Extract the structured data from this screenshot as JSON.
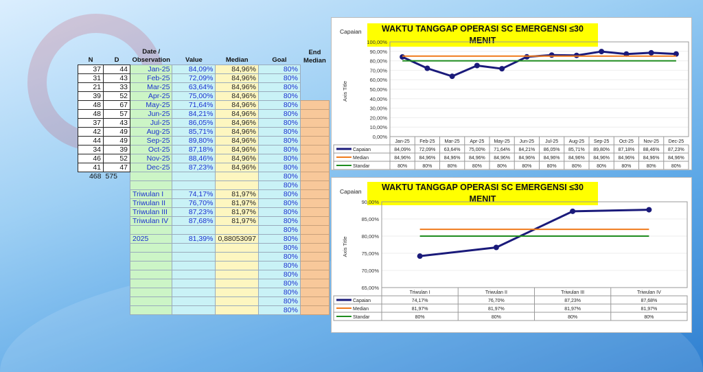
{
  "table": {
    "headers": {
      "n": "N",
      "d": "D",
      "date": "Date /",
      "date2": "Observation",
      "value": "Value",
      "median": "Median",
      "goal": "Goal",
      "end": "End",
      "end2": "Median"
    },
    "monthly": [
      {
        "n": "37",
        "d": "44",
        "date": "Jan-25",
        "value": "84,09%",
        "median": "84,96%",
        "goal": "80%"
      },
      {
        "n": "31",
        "d": "43",
        "date": "Feb-25",
        "value": "72,09%",
        "median": "84,96%",
        "goal": "80%"
      },
      {
        "n": "21",
        "d": "33",
        "date": "Mar-25",
        "value": "63,64%",
        "median": "84,96%",
        "goal": "80%"
      },
      {
        "n": "39",
        "d": "52",
        "date": "Apr-25",
        "value": "75,00%",
        "median": "84,96%",
        "goal": "80%"
      },
      {
        "n": "48",
        "d": "67",
        "date": "May-25",
        "value": "71,64%",
        "median": "84,96%",
        "goal": "80%"
      },
      {
        "n": "48",
        "d": "57",
        "date": "Jun-25",
        "value": "84,21%",
        "median": "84,96%",
        "goal": "80%"
      },
      {
        "n": "37",
        "d": "43",
        "date": "Jul-25",
        "value": "86,05%",
        "median": "84,96%",
        "goal": "80%"
      },
      {
        "n": "42",
        "d": "49",
        "date": "Aug-25",
        "value": "85,71%",
        "median": "84,96%",
        "goal": "80%"
      },
      {
        "n": "44",
        "d": "49",
        "date": "Sep-25",
        "value": "89,80%",
        "median": "84,96%",
        "goal": "80%"
      },
      {
        "n": "34",
        "d": "39",
        "date": "Oct-25",
        "value": "87,18%",
        "median": "84,96%",
        "goal": "80%"
      },
      {
        "n": "46",
        "d": "52",
        "date": "Nov-25",
        "value": "88,46%",
        "median": "84,96%",
        "goal": "80%"
      },
      {
        "n": "41",
        "d": "47",
        "date": "Dec-25",
        "value": "87,23%",
        "median": "84,96%",
        "goal": "80%"
      }
    ],
    "totals": {
      "n": "468",
      "d": "575",
      "goal": "80%"
    },
    "quarterly": [
      {
        "date": "Triwulan I",
        "value": "74,17%",
        "median": "81,97%",
        "goal": "80%"
      },
      {
        "date": "Triwulan II",
        "value": "76,70%",
        "median": "81,97%",
        "goal": "80%"
      },
      {
        "date": "Triwulan III",
        "value": "87,23%",
        "median": "81,97%",
        "goal": "80%"
      },
      {
        "date": "Triwulan IV",
        "value": "87,68%",
        "median": "81,97%",
        "goal": "80%"
      }
    ],
    "annual": {
      "date": "2025",
      "value": "81,39%",
      "median": "0,88053097",
      "goal": "80%"
    },
    "goal_default": "80%"
  },
  "colors": {
    "capaian": "#1a1a7a",
    "median": "#f07a1a",
    "standar": "#1e8c1e",
    "title_bg": "#ffff00"
  },
  "chart_data": [
    {
      "type": "line",
      "title": "WAKTU TANGGAP OPERASI SC EMERGENSI ≤30 MENIT",
      "ylabel_top": "Capaian",
      "ylabel": "Axis Title",
      "ylim": [
        0,
        100
      ],
      "yticks": [
        "0,00%",
        "10,00%",
        "20,00%",
        "30,00%",
        "40,00%",
        "50,00%",
        "60,00%",
        "70,00%",
        "80,00%",
        "90,00%",
        "100,00%"
      ],
      "categories": [
        "Jan-25",
        "Feb-25",
        "Mar-25",
        "Apr-25",
        "May-25",
        "Jun-25",
        "Jul-25",
        "Aug-25",
        "Sep-25",
        "Oct-25",
        "Nov-25",
        "Dec-25"
      ],
      "series": [
        {
          "name": "Capaian",
          "values": [
            84.09,
            72.09,
            63.64,
            75.0,
            71.64,
            84.21,
            86.05,
            85.71,
            89.8,
            87.18,
            88.46,
            87.23
          ],
          "labels": [
            "84,09%",
            "72,09%",
            "63,64%",
            "75,00%",
            "71,64%",
            "84,21%",
            "86,05%",
            "85,71%",
            "89,80%",
            "87,18%",
            "88,46%",
            "87,23%"
          ]
        },
        {
          "name": "Median",
          "values": [
            84.96,
            84.96,
            84.96,
            84.96,
            84.96,
            84.96,
            84.96,
            84.96,
            84.96,
            84.96,
            84.96,
            84.96
          ],
          "labels": [
            "84,96%",
            "84,96%",
            "84,96%",
            "84,96%",
            "84,96%",
            "84,96%",
            "84,96%",
            "84,96%",
            "84,96%",
            "84,96%",
            "84,96%",
            "84,96%"
          ]
        },
        {
          "name": "Standar",
          "values": [
            80,
            80,
            80,
            80,
            80,
            80,
            80,
            80,
            80,
            80,
            80,
            80
          ],
          "labels": [
            "80%",
            "80%",
            "80%",
            "80%",
            "80%",
            "80%",
            "80%",
            "80%",
            "80%",
            "80%",
            "80%",
            "80%"
          ]
        }
      ]
    },
    {
      "type": "line",
      "title": "WAKTU TANGGAP OPERASI SC EMERGENSI ≤30 MENIT",
      "ylabel_top": "Capaian",
      "ylabel": "Axis Title",
      "ylim": [
        65,
        90
      ],
      "yticks": [
        "65,00%",
        "70,00%",
        "75,00%",
        "80,00%",
        "85,00%",
        "90,00%"
      ],
      "categories": [
        "Triwulan I",
        "Triwulan II",
        "Triwulan III",
        "Triwulan IV"
      ],
      "series": [
        {
          "name": "Capaian",
          "values": [
            74.17,
            76.7,
            87.23,
            87.68
          ],
          "labels": [
            "74,17%",
            "76,70%",
            "87,23%",
            "87,68%"
          ]
        },
        {
          "name": "Median",
          "values": [
            81.97,
            81.97,
            81.97,
            81.97
          ],
          "labels": [
            "81,97%",
            "81,97%",
            "81,97%",
            "81,97%"
          ]
        },
        {
          "name": "Standar",
          "values": [
            80,
            80,
            80,
            80
          ],
          "labels": [
            "80%",
            "80%",
            "80%",
            "80%"
          ]
        }
      ]
    }
  ]
}
